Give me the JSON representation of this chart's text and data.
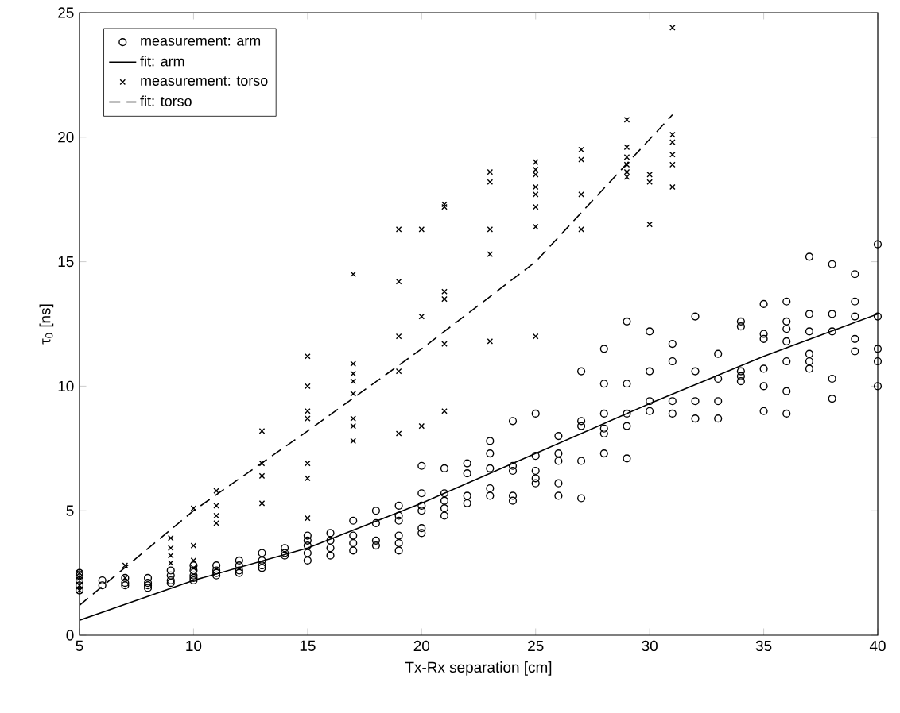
{
  "chart_data": {
    "type": "scatter",
    "xlabel": "Tx-Rx separation [cm]",
    "ylabel": "τ$_{0}$ [ns]",
    "xlim": [
      5,
      40
    ],
    "ylim": [
      0,
      25
    ],
    "xticks": [
      5,
      10,
      15,
      20,
      25,
      30,
      35,
      40
    ],
    "yticks": [
      0,
      5,
      10,
      15,
      20,
      25
    ],
    "legend": "top left",
    "series": [
      {
        "name": "measurement: arm",
        "color": "#000000",
        "marker": "circle",
        "x": [
          5,
          5,
          5,
          5,
          5,
          6,
          6,
          7,
          7,
          7,
          8,
          8,
          8,
          8,
          9,
          9,
          9,
          9,
          10,
          10,
          10,
          10,
          10,
          11,
          11,
          11,
          11,
          12,
          12,
          12,
          12,
          13,
          13,
          13,
          13,
          14,
          14,
          14,
          15,
          15,
          15,
          15,
          15,
          16,
          16,
          16,
          16,
          17,
          17,
          17,
          17,
          18,
          18,
          18,
          18,
          19,
          19,
          19,
          19,
          19,
          19,
          20,
          20,
          20,
          20,
          20,
          20,
          21,
          21,
          21,
          21,
          21,
          22,
          22,
          22,
          22,
          23,
          23,
          23,
          23,
          23,
          24,
          24,
          24,
          24,
          24,
          25,
          25,
          25,
          25,
          25,
          26,
          26,
          26,
          26,
          26,
          27,
          27,
          27,
          27,
          27,
          28,
          28,
          28,
          28,
          28,
          28,
          29,
          29,
          29,
          29,
          29,
          30,
          30,
          30,
          30,
          31,
          31,
          31,
          31,
          32,
          32,
          32,
          32,
          33,
          33,
          33,
          33,
          34,
          34,
          34,
          34,
          34,
          35,
          35,
          35,
          35,
          35,
          35,
          36,
          36,
          36,
          36,
          36,
          36,
          36,
          37,
          37,
          37,
          37,
          37,
          37,
          38,
          38,
          38,
          38,
          38,
          39,
          39,
          39,
          39,
          39,
          40,
          40,
          40,
          40,
          40
        ],
        "values": [
          2.5,
          2.2,
          2.0,
          1.8,
          2.4,
          2.2,
          2.0,
          2.3,
          2.1,
          2.0,
          2.3,
          2.1,
          2.0,
          1.9,
          2.6,
          2.4,
          2.2,
          2.1,
          2.8,
          2.6,
          2.4,
          2.3,
          2.2,
          2.8,
          2.6,
          2.5,
          2.4,
          3.0,
          2.8,
          2.6,
          2.5,
          3.3,
          3.0,
          2.8,
          2.7,
          3.5,
          3.3,
          3.2,
          4.0,
          3.8,
          3.6,
          3.3,
          3.0,
          4.1,
          3.8,
          3.5,
          3.2,
          4.6,
          4.0,
          3.7,
          3.4,
          5.0,
          4.5,
          3.8,
          3.6,
          5.2,
          4.8,
          4.6,
          4.0,
          3.7,
          3.4,
          6.8,
          5.7,
          5.2,
          5.0,
          4.3,
          4.1,
          6.7,
          5.7,
          5.4,
          5.1,
          4.8,
          6.9,
          6.5,
          5.6,
          5.3,
          7.8,
          7.3,
          6.7,
          5.9,
          5.6,
          8.6,
          6.8,
          6.6,
          5.6,
          5.4,
          8.9,
          7.2,
          6.6,
          6.3,
          6.1,
          8.0,
          7.3,
          7.0,
          6.1,
          5.6,
          10.6,
          8.6,
          8.4,
          7.0,
          5.5,
          11.5,
          10.1,
          8.9,
          8.3,
          8.1,
          7.3,
          12.6,
          10.1,
          8.9,
          8.4,
          7.1,
          12.2,
          10.6,
          9.4,
          9.0,
          11.7,
          11.0,
          9.4,
          8.9,
          12.8,
          10.6,
          9.4,
          8.7,
          11.3,
          10.3,
          9.4,
          8.7,
          12.6,
          12.4,
          10.6,
          10.4,
          10.2,
          13.3,
          12.1,
          11.9,
          10.7,
          10.0,
          9.0,
          13.4,
          12.6,
          12.3,
          11.8,
          11.0,
          9.8,
          8.9,
          15.2,
          12.9,
          12.2,
          11.3,
          11.0,
          10.7,
          14.9,
          12.9,
          12.2,
          10.3,
          9.5,
          14.5,
          13.4,
          12.8,
          11.9,
          11.4,
          15.7,
          12.8,
          11.5,
          11.0,
          10.0
        ]
      },
      {
        "name": "fit: arm",
        "color": "#000000",
        "type": "line",
        "marker": "none",
        "line_style": "solid",
        "x": [
          5,
          10,
          15,
          20,
          25,
          30,
          35,
          40
        ],
        "values": [
          0.6,
          2.2,
          3.5,
          5.3,
          7.3,
          9.3,
          11.2,
          12.9
        ]
      },
      {
        "name": "measurement: torso",
        "color": "#000000",
        "marker": "cross",
        "x": [
          5,
          5,
          5,
          5,
          7,
          7,
          9,
          9,
          9,
          9,
          10,
          10,
          10,
          10,
          11,
          11,
          11,
          11,
          13,
          13,
          13,
          13,
          15,
          15,
          15,
          15,
          15,
          15,
          15,
          17,
          17,
          17,
          17,
          17,
          17,
          17,
          17,
          19,
          19,
          19,
          19,
          19,
          20,
          20,
          20,
          21,
          21,
          21,
          21,
          21,
          21,
          23,
          23,
          23,
          23,
          23,
          25,
          25,
          25,
          25,
          25,
          25,
          25,
          25,
          27,
          27,
          27,
          27,
          29,
          29,
          29,
          29,
          29,
          29,
          30,
          30,
          30,
          31,
          31,
          31,
          31,
          31,
          31
        ],
        "values": [
          2.0,
          2.3,
          2.5,
          1.8,
          2.8,
          2.3,
          3.9,
          3.5,
          3.2,
          2.9,
          5.1,
          3.6,
          3.0,
          2.7,
          5.8,
          5.2,
          4.8,
          4.5,
          8.2,
          6.9,
          6.4,
          5.3,
          11.2,
          10.0,
          9.0,
          8.7,
          6.9,
          6.3,
          4.7,
          14.5,
          10.9,
          10.5,
          10.2,
          9.7,
          8.7,
          8.4,
          7.8,
          16.3,
          14.2,
          12.0,
          10.6,
          8.1,
          16.3,
          12.8,
          8.4,
          17.3,
          17.2,
          13.8,
          13.5,
          11.7,
          9.0,
          18.6,
          18.2,
          16.3,
          15.3,
          11.8,
          19.0,
          18.7,
          18.5,
          18.0,
          17.7,
          17.2,
          16.4,
          12.0,
          19.5,
          19.1,
          17.7,
          16.3,
          20.7,
          19.6,
          19.2,
          18.9,
          18.6,
          18.4,
          18.5,
          18.2,
          16.5,
          24.4,
          20.1,
          19.8,
          19.3,
          18.9,
          18.0
        ]
      },
      {
        "name": "fit: torso",
        "color": "#000000",
        "type": "line",
        "marker": "none",
        "line_style": "dashed",
        "x": [
          5,
          10,
          15,
          20,
          25,
          31
        ],
        "values": [
          1.2,
          5.0,
          8.2,
          11.5,
          15.0,
          20.9
        ]
      }
    ]
  }
}
